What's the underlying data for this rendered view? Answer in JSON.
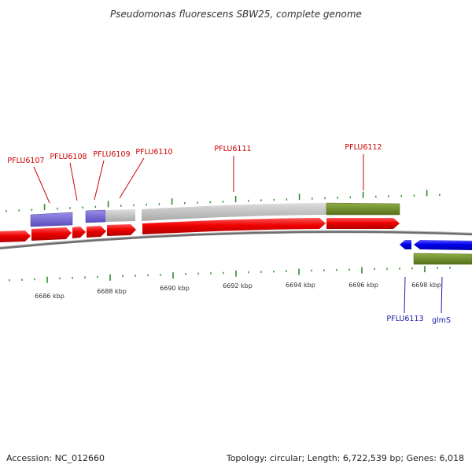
{
  "title": "Pseudomonas fluorescens SBW25, complete genome",
  "footer": {
    "accession": "Accession: NC_012660",
    "summary": "Topology: circular; Length: 6,722,539 bp; Genes: 6,018"
  },
  "axis": {
    "unit": "kbp",
    "tick_labels": [
      "6686 kbp",
      "6688 kbp",
      "6690 kbp",
      "6692 kbp",
      "6694 kbp",
      "6696 kbp",
      "6698 kbp"
    ]
  },
  "genes": {
    "forward": [
      {
        "label": "PFLU6107",
        "color": "#ff0000"
      },
      {
        "label": "PFLU6108",
        "color": "#ff0000"
      },
      {
        "label": "PFLU6109",
        "color": "#ff0000"
      },
      {
        "label": "PFLU6110",
        "color": "#ff0000"
      },
      {
        "label": "PFLU6111",
        "color": "#ff0000"
      },
      {
        "label": "PFLU6112",
        "color": "#ff0000"
      }
    ],
    "reverse": [
      {
        "label": "PFLU6113",
        "color": "#0000ff"
      },
      {
        "label": "glmS",
        "color": "#0000ff"
      }
    ]
  },
  "colors": {
    "forward_gene": "#ff0000",
    "reverse_gene": "#0000ff",
    "forward_label": "#cc0000",
    "reverse_label": "#1a1aaa",
    "backbone": "#888888",
    "tick": "#2e8b2e",
    "cog_purple": "#6a5acd",
    "cog_gray": "#c0c0c0",
    "cog_green": "#6b8e23"
  }
}
